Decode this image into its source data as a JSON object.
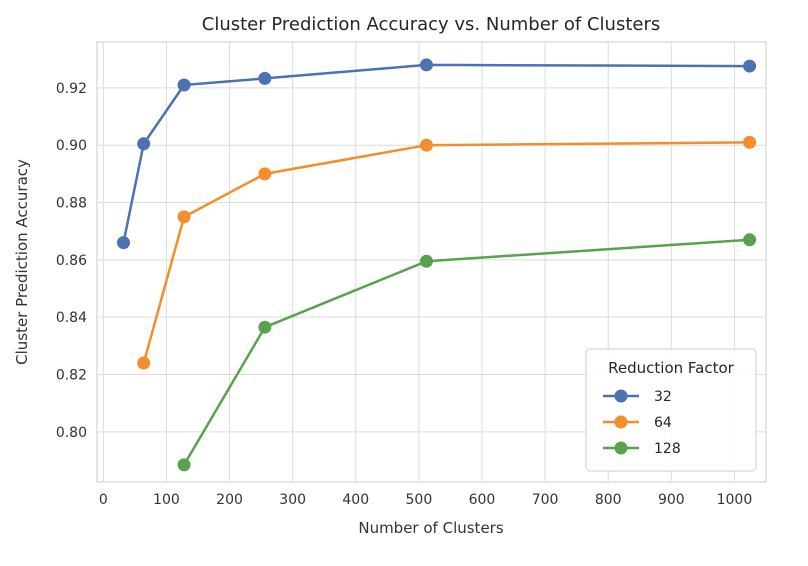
{
  "chart_data": {
    "type": "line",
    "title": "Cluster Prediction Accuracy vs. Number of Clusters",
    "xlabel": "Number of Clusters",
    "ylabel": "Cluster Prediction Accuracy",
    "xlim": [
      -10,
      1050
    ],
    "ylim": [
      0.7825,
      0.936
    ],
    "xticks": [
      0,
      100,
      200,
      300,
      400,
      500,
      600,
      700,
      800,
      900,
      1000
    ],
    "yticks": [
      0.8,
      0.82,
      0.84,
      0.86,
      0.88,
      0.9,
      0.92
    ],
    "ytick_labels": [
      "0.80",
      "0.82",
      "0.84",
      "0.86",
      "0.88",
      "0.90",
      "0.92"
    ],
    "grid": true,
    "legend": {
      "title": "Reduction Factor",
      "position": "lower-right"
    },
    "series": [
      {
        "name": "32",
        "color": "#4c72b0",
        "x": [
          32,
          64,
          128,
          256,
          512,
          1024
        ],
        "y": [
          0.866,
          0.9005,
          0.921,
          0.9233,
          0.928,
          0.9276
        ]
      },
      {
        "name": "64",
        "color": "#f28e2b",
        "x": [
          64,
          128,
          256,
          512,
          1024
        ],
        "y": [
          0.824,
          0.875,
          0.89,
          0.9,
          0.901
        ]
      },
      {
        "name": "128",
        "color": "#59a14f",
        "x": [
          128,
          256,
          512,
          1024
        ],
        "y": [
          0.7885,
          0.8365,
          0.8595,
          0.867
        ]
      }
    ]
  }
}
